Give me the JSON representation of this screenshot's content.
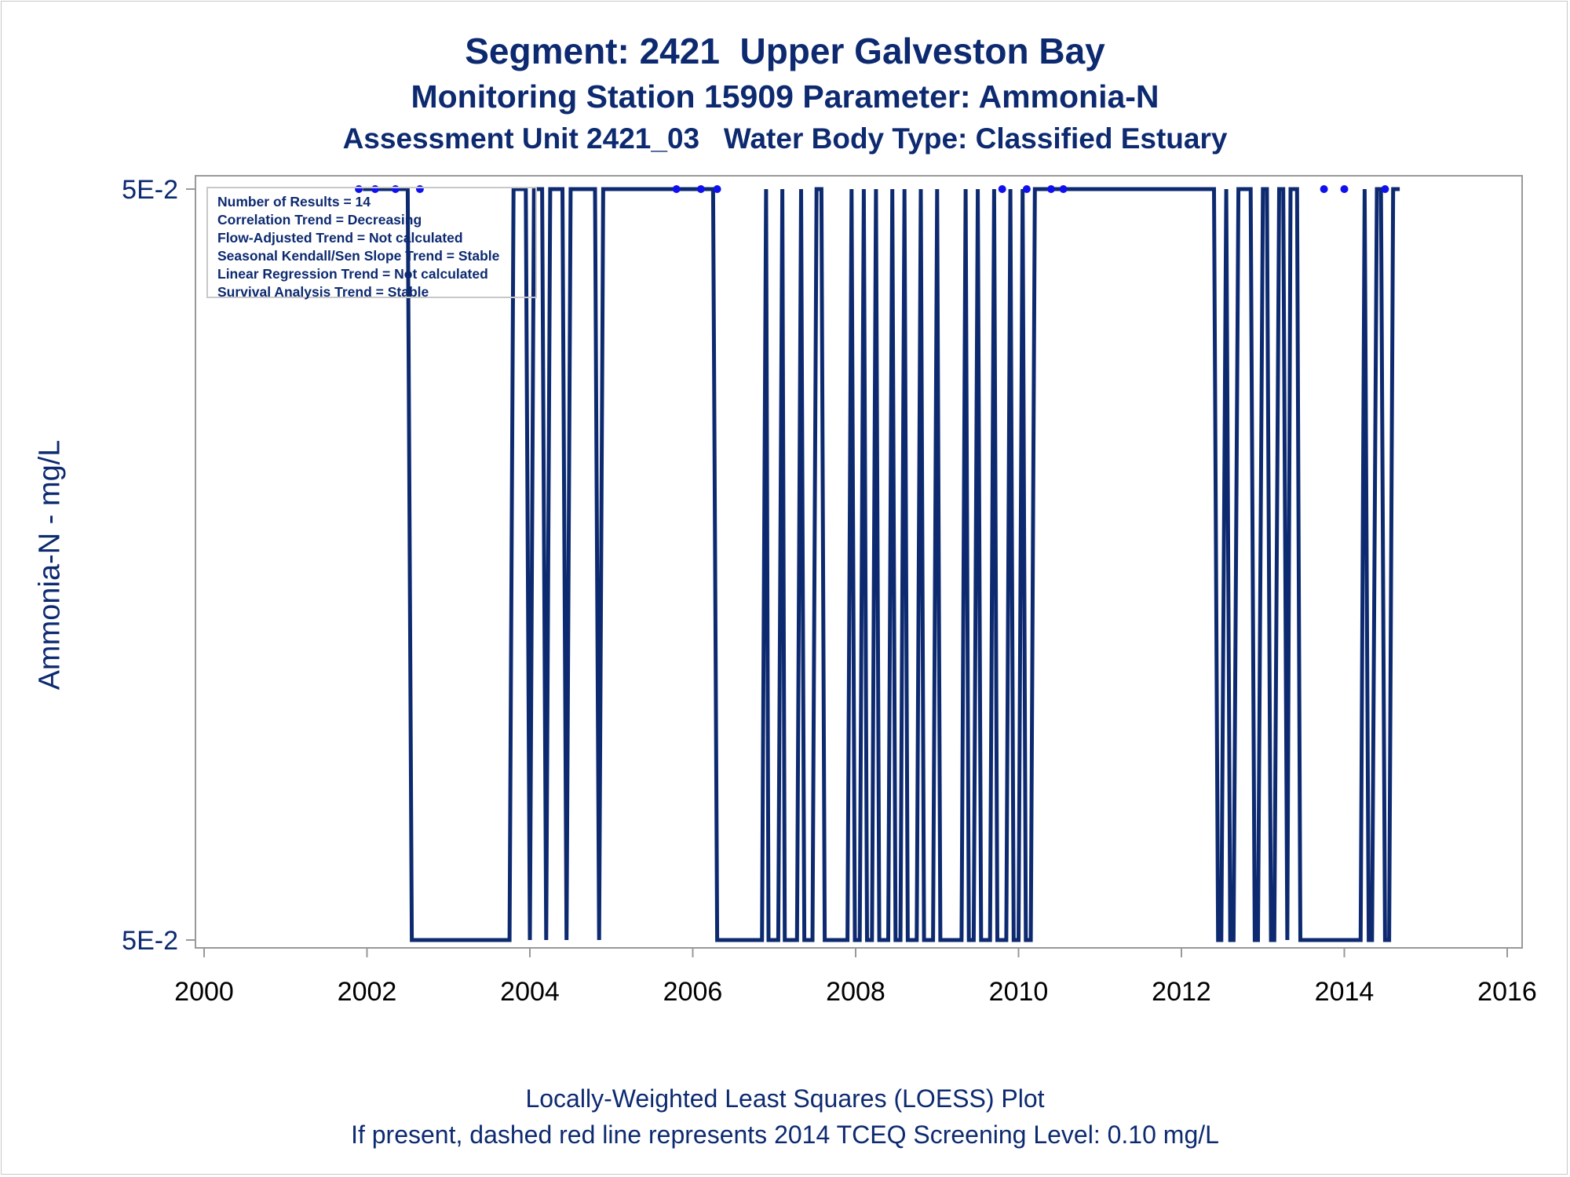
{
  "titles": {
    "line1": "Segment: 2421  Upper Galveston Bay",
    "line2": "Monitoring Station 15909 Parameter: Ammonia-N",
    "line3": "Assessment Unit 2421_03   Water Body Type: Classified Estuary"
  },
  "footnotes": {
    "line1": "Locally-Weighted Least Squares (LOESS) Plot",
    "line2": "If present, dashed red line represents 2014 TCEQ Screening Level: 0.10 mg/L"
  },
  "stats_box": [
    "Number of Results = 14",
    "Correlation Trend = Decreasing",
    "Flow-Adjusted Trend = Not calculated",
    "Seasonal Kendall/Sen Slope Trend = Stable",
    "Linear Regression Trend = Not calculated",
    "Survival Analysis Trend = Stable"
  ],
  "colors": {
    "text": "#0d2a70",
    "line": "#0d2a70",
    "points": "#1010ee",
    "axis": "#999999"
  },
  "chart_data": {
    "type": "line",
    "title": "Segment: 2421  Upper Galveston Bay",
    "xlabel": "",
    "ylabel": "Ammonia-N - mg/L",
    "xlim": [
      2000,
      2016
    ],
    "x_ticks": [
      "2000",
      "2002",
      "2004",
      "2006",
      "2008",
      "2010",
      "2012",
      "2014",
      "2016"
    ],
    "y_ticks": [
      "5E-2",
      "5E-2"
    ],
    "y_tick_positions": [
      "top",
      "bottom"
    ],
    "grid": false,
    "series": [
      {
        "kind": "points",
        "x": [
          2001.9,
          2002.1,
          2002.35,
          2002.65,
          2005.8,
          2006.1,
          2006.3,
          2009.8,
          2010.1,
          2010.4,
          2010.55,
          2013.75,
          2014.0,
          2014.5
        ],
        "y": [
          0.05,
          0.05,
          0.05,
          0.05,
          0.05,
          0.05,
          0.05,
          0.05,
          0.05,
          0.05,
          0.05,
          0.05,
          0.05,
          0.05
        ]
      },
      {
        "kind": "loess",
        "level": [
          "upper",
          "upper",
          "lower",
          "lower",
          "upper",
          "upper",
          "lower",
          "upper",
          "upper",
          "lower",
          "upper",
          "upper",
          "lower",
          "upper",
          "upper",
          "lower",
          "upper",
          "upper",
          "lower",
          "lower",
          "upper",
          "lower",
          "lower",
          "upper",
          "lower",
          "lower",
          "upper",
          "lower",
          "lower",
          "upper",
          "upper",
          "lower",
          "lower",
          "upper",
          "lower",
          "lower",
          "upper",
          "lower",
          "lower",
          "upper",
          "lower",
          "lower",
          "upper",
          "lower",
          "lower",
          "upper",
          "lower",
          "lower",
          "upper",
          "lower",
          "lower",
          "upper",
          "lower",
          "lower",
          "upper",
          "lower",
          "lower",
          "upper",
          "lower",
          "lower",
          "upper",
          "lower",
          "lower",
          "upper",
          "lower",
          "lower",
          "upper",
          "lower",
          "lower",
          "upper",
          "upper",
          "lower",
          "lower",
          "upper",
          "lower",
          "lower",
          "upper",
          "upper",
          "lower",
          "lower",
          "upper",
          "upper",
          "lower",
          "lower",
          "upper",
          "upper",
          "lower",
          "upper",
          "upper",
          "lower",
          "lower",
          "upper",
          "lower",
          "lower",
          "upper",
          "upper",
          "lower",
          "lower",
          "upper",
          "upper"
        ],
        "x": [
          2001.95,
          2002.5,
          2002.55,
          2003.75,
          2003.8,
          2003.95,
          2004.0,
          2004.05,
          2004.15,
          2004.2,
          2004.25,
          2004.4,
          2004.45,
          2004.5,
          2004.8,
          2004.85,
          2004.9,
          2006.25,
          2006.3,
          2006.85,
          2006.9,
          2006.93,
          2007.05,
          2007.1,
          2007.13,
          2007.28,
          2007.33,
          2007.37,
          2007.47,
          2007.52,
          2007.58,
          2007.62,
          2007.9,
          2007.95,
          2007.99,
          2008.05,
          2008.1,
          2008.14,
          2008.2,
          2008.25,
          2008.29,
          2008.4,
          2008.45,
          2008.49,
          2008.55,
          2008.6,
          2008.64,
          2008.75,
          2008.8,
          2008.84,
          2008.95,
          2009.0,
          2009.04,
          2009.3,
          2009.35,
          2009.39,
          2009.45,
          2009.5,
          2009.54,
          2009.65,
          2009.7,
          2009.74,
          2009.85,
          2009.9,
          2009.94,
          2010.0,
          2010.05,
          2010.09,
          2010.15,
          2010.2,
          2012.4,
          2012.45,
          2012.49,
          2012.55,
          2012.6,
          2012.64,
          2012.7,
          2012.85,
          2012.9,
          2012.94,
          2013.0,
          2013.05,
          2013.1,
          2013.14,
          2013.2,
          2013.25,
          2013.3,
          2013.34,
          2013.42,
          2013.46,
          2014.2,
          2014.25,
          2014.3,
          2014.34,
          2014.4,
          2014.45,
          2014.5,
          2014.55,
          2014.6,
          2014.68
        ]
      }
    ]
  }
}
